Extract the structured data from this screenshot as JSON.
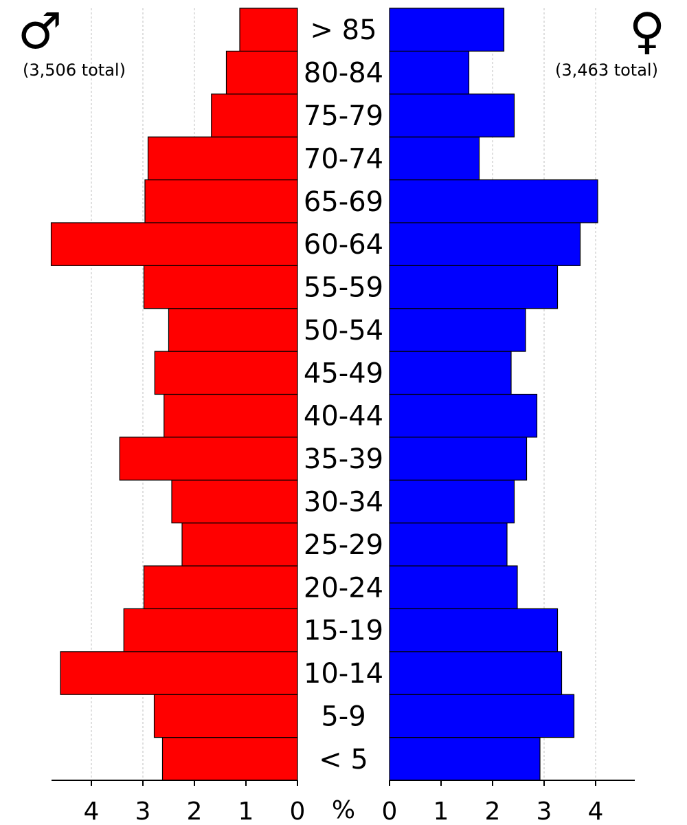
{
  "chart_data": {
    "type": "bar",
    "orientation": "horizontal",
    "subtype": "population-pyramid",
    "categories": [
      "< 5",
      "5-9",
      "10-14",
      "15-19",
      "20-24",
      "25-29",
      "30-34",
      "35-39",
      "40-44",
      "45-49",
      "50-54",
      "55-59",
      "60-64",
      "65-69",
      "70-74",
      "75-79",
      "80-84",
      "> 85"
    ],
    "series": [
      {
        "side": "left",
        "color": "#ff0000",
        "symbol": "♂",
        "total_label": "(3,506 total)",
        "values": [
          2.62,
          2.78,
          4.6,
          3.37,
          2.98,
          2.24,
          2.44,
          3.45,
          2.59,
          2.77,
          2.5,
          2.98,
          4.78,
          2.96,
          2.9,
          1.67,
          1.38,
          1.12
        ]
      },
      {
        "side": "right",
        "color": "#0000ff",
        "symbol": "♀",
        "total_label": "(3,463 total)",
        "values": [
          2.92,
          3.58,
          3.34,
          3.26,
          2.48,
          2.28,
          2.42,
          2.66,
          2.86,
          2.36,
          2.64,
          3.26,
          3.7,
          4.04,
          1.74,
          2.42,
          1.54,
          2.22
        ]
      }
    ],
    "x_ticks": [
      "0",
      "1",
      "2",
      "3",
      "4"
    ],
    "xlabel": "%",
    "xlim": [
      0,
      4.8
    ],
    "grid": "vertical-dashed"
  }
}
